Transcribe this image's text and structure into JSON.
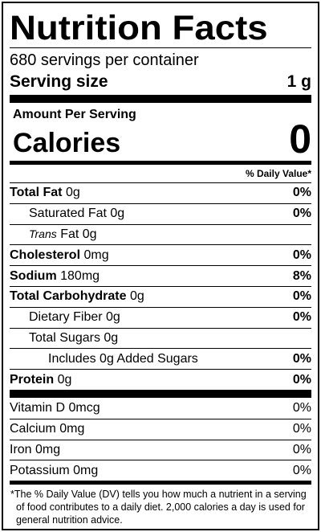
{
  "title": "Nutrition Facts",
  "servings_per_container": "680 servings per container",
  "serving_size": {
    "label": "Serving size",
    "value": "1 g"
  },
  "amount_per_serving": "Amount Per Serving",
  "calories": {
    "label": "Calories",
    "value": "0"
  },
  "daily_value_header": "% Daily Value*",
  "nutrients": [
    {
      "name": "Total Fat",
      "amount": "0g",
      "dv": "0%"
    },
    {
      "name": "Saturated Fat",
      "amount": "0g",
      "dv": "0%"
    },
    {
      "name": "Trans",
      "suffix": "Fat",
      "amount": "0g",
      "dv": ""
    },
    {
      "name": "Cholesterol",
      "amount": "0mg",
      "dv": "0%"
    },
    {
      "name": "Sodium",
      "amount": "180mg",
      "dv": "8%"
    },
    {
      "name": "Total Carbohydrate",
      "amount": "0g",
      "dv": "0%"
    },
    {
      "name": "Dietary Fiber",
      "amount": "0g",
      "dv": "0%"
    },
    {
      "name": "Total Sugars",
      "amount": "0g",
      "dv": ""
    },
    {
      "name": "Includes 0g Added Sugars",
      "amount": "",
      "dv": "0%"
    },
    {
      "name": "Protein",
      "amount": "0g",
      "dv": "0%"
    }
  ],
  "vitamins": [
    {
      "name": "Vitamin D",
      "amount": "0mcg",
      "dv": "0%"
    },
    {
      "name": "Calcium",
      "amount": "0mg",
      "dv": "0%"
    },
    {
      "name": "Iron",
      "amount": "0mg",
      "dv": "0%"
    },
    {
      "name": "Potassium",
      "amount": "0mg",
      "dv": "0%"
    }
  ],
  "footnote": "*The % Daily Value (DV) tells you how much a nutrient in a serving of food contributes to a daily diet. 2,000 calories a day is used for general nutrition advice."
}
